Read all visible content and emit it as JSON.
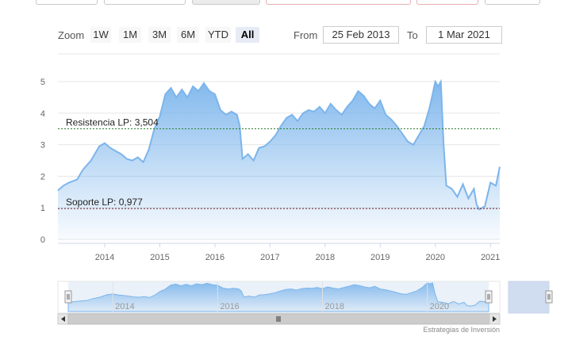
{
  "range_selector": {
    "zoom_label": "Zoom",
    "buttons": [
      "1W",
      "1M",
      "3M",
      "6M",
      "YTD",
      "All"
    ],
    "active": "All",
    "from_label": "From",
    "from_value": "25 Feb 2013",
    "to_label": "To",
    "to_value": "1 Mar 2021"
  },
  "credit": "Estrategias de Inversión",
  "colors": {
    "line": "#7cb5ec",
    "resistance": "#2e7d32",
    "support": "#6b1b1b"
  },
  "chart_data": {
    "type": "area",
    "title": "",
    "xlabel": "",
    "ylabel": "",
    "ylim": [
      0,
      5
    ],
    "yticks": [
      0,
      1,
      2,
      3,
      4,
      5
    ],
    "xlim": [
      2013.15,
      2021.17
    ],
    "xticks": [
      "2014",
      "2015",
      "2016",
      "2017",
      "2018",
      "2019",
      "2020",
      "2021"
    ],
    "grid": true,
    "series": [
      {
        "x": [
          2013.15,
          2013.25,
          2013.35,
          2013.5,
          2013.6,
          2013.75,
          2013.9,
          2014.0,
          2014.1,
          2014.2,
          2014.3,
          2014.4,
          2014.5,
          2014.6,
          2014.7,
          2014.8,
          2014.9,
          2015.0,
          2015.1,
          2015.2,
          2015.3,
          2015.4,
          2015.5,
          2015.6,
          2015.7,
          2015.8,
          2015.9,
          2016.0,
          2016.1,
          2016.2,
          2016.3,
          2016.4,
          2016.45,
          2016.5,
          2016.6,
          2016.7,
          2016.8,
          2016.9,
          2017.0,
          2017.1,
          2017.2,
          2017.3,
          2017.4,
          2017.5,
          2017.6,
          2017.7,
          2017.8,
          2017.9,
          2018.0,
          2018.1,
          2018.2,
          2018.3,
          2018.4,
          2018.5,
          2018.6,
          2018.7,
          2018.8,
          2018.9,
          2019.0,
          2019.1,
          2019.2,
          2019.3,
          2019.4,
          2019.5,
          2019.6,
          2019.7,
          2019.8,
          2019.9,
          2019.95,
          2020.0,
          2020.05,
          2020.1,
          2020.15,
          2020.2,
          2020.3,
          2020.4,
          2020.5,
          2020.6,
          2020.7,
          2020.75,
          2020.8,
          2020.9,
          2021.0,
          2021.1,
          2021.17
        ],
        "values": [
          1.55,
          1.7,
          1.8,
          1.9,
          2.2,
          2.5,
          2.95,
          3.05,
          2.9,
          2.8,
          2.7,
          2.55,
          2.5,
          2.6,
          2.45,
          2.85,
          3.5,
          3.9,
          4.6,
          4.8,
          4.5,
          4.75,
          4.5,
          4.85,
          4.7,
          4.95,
          4.7,
          4.6,
          4.1,
          3.95,
          4.05,
          3.95,
          3.6,
          2.55,
          2.7,
          2.5,
          2.9,
          2.95,
          3.1,
          3.3,
          3.6,
          3.85,
          3.95,
          3.75,
          4.0,
          4.1,
          4.05,
          4.2,
          4.0,
          4.3,
          4.1,
          3.95,
          4.2,
          4.4,
          4.7,
          4.55,
          4.3,
          4.15,
          4.4,
          3.95,
          3.8,
          3.6,
          3.35,
          3.1,
          3.0,
          3.3,
          3.6,
          4.2,
          4.6,
          5.0,
          4.85,
          5.0,
          3.0,
          1.7,
          1.6,
          1.35,
          1.75,
          1.3,
          1.6,
          1.1,
          0.95,
          1.05,
          1.8,
          1.7,
          2.3
        ]
      }
    ],
    "annotations": [
      {
        "label": "Resistencia LP: 3,504",
        "value": 3.504
      },
      {
        "label": "Soporte LP: 0,977",
        "value": 0.977
      }
    ],
    "navigator_labels": [
      "2014",
      "2016",
      "2018",
      "2020"
    ]
  }
}
